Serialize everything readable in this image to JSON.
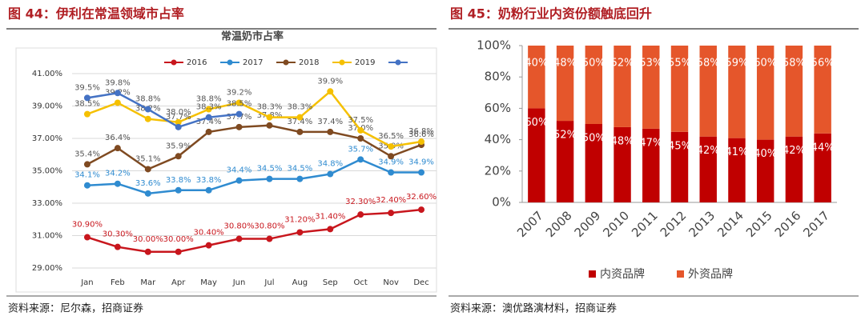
{
  "charts": [
    {
      "heading": "图 44：伊利在常温领域市占率",
      "source": "资料来源：尼尔森，招商证券",
      "chart_data": {
        "type": "line",
        "title": "常温奶市占率",
        "categories": [
          "Jan",
          "Feb",
          "Mar",
          "Apr",
          "May",
          "Jun",
          "Jul",
          "Aug",
          "Sep",
          "Oct",
          "Nov",
          "Dec"
        ],
        "ylim": [
          29,
          41
        ],
        "yticks": [
          {
            "value": 29,
            "label": "29.00%"
          },
          {
            "value": 31,
            "label": "31.00%"
          },
          {
            "value": 33,
            "label": "33.00%"
          },
          {
            "value": 35,
            "label": "35.00%"
          },
          {
            "value": 37,
            "label": "37.00%"
          },
          {
            "value": 39,
            "label": "39.00%"
          },
          {
            "value": 41,
            "label": "41.00%"
          }
        ],
        "grid": true,
        "series": [
          {
            "name": "2016",
            "color": "#c8161d",
            "values": [
              30.9,
              30.3,
              30.0,
              30.0,
              30.4,
              30.8,
              30.8,
              31.2,
              31.4,
              32.3,
              32.4,
              32.6
            ],
            "value_labels": [
              "30.90%",
              "30.30%",
              "30.00%",
              "30.00%",
              "30.40%",
              "30.80%",
              "30.80%",
              "31.20%",
              "31.40%",
              "32.30%",
              "32.40%",
              "32.60%"
            ]
          },
          {
            "name": "2017",
            "color": "#2f8bd0",
            "values": [
              34.1,
              34.2,
              33.6,
              33.8,
              33.8,
              34.4,
              34.5,
              34.5,
              34.8,
              35.7,
              34.9,
              34.9
            ],
            "value_labels": [
              "34.1%",
              "34.2%",
              "33.6%",
              "33.8%",
              "33.8%",
              "34.4%",
              "34.5%",
              "34.5%",
              "34.8%",
              "35.7%",
              "34.9%",
              "34.9%"
            ]
          },
          {
            "name": "2018",
            "color": "#7f4a21",
            "values": [
              35.4,
              36.4,
              35.1,
              35.9,
              37.4,
              37.7,
              37.8,
              37.4,
              37.4,
              37.0,
              35.9,
              36.6
            ],
            "value_labels": [
              "35.4%",
              "36.4%",
              "35.1%",
              "35.9%",
              "37.4%",
              "37.7%",
              "37.8%",
              "37.4%",
              "37.4%",
              "37.0%",
              "35.9%",
              "36.6%"
            ]
          },
          {
            "name": "2019",
            "color": "#f5c000",
            "values": [
              38.5,
              39.2,
              38.2,
              38.0,
              38.8,
              39.2,
              38.3,
              38.3,
              39.9,
              37.5,
              36.5,
              36.8
            ],
            "value_labels": [
              "38.5%",
              "39.2%",
              "38.2%",
              "38.0%",
              "38.8%",
              "39.2%",
              "38.3%",
              "38.3%",
              "39.9%",
              "37.5%",
              "36.5%",
              "36.8%"
            ]
          },
          {
            "name": null,
            "color": "#4472c4",
            "values": [
              39.5,
              39.8,
              38.8,
              37.7,
              38.3,
              38.5,
              null,
              null,
              null,
              null,
              null,
              null
            ],
            "value_labels": [
              "39.5%",
              "39.8%",
              "38.8%",
              "37.7%",
              "38.3%",
              "38.5%",
              null,
              null,
              null,
              null,
              null,
              null
            ]
          }
        ]
      }
    },
    {
      "heading": "图 45：奶粉行业内资份额触底回升",
      "source": "资料来源：澳优路演材料，招商证券",
      "chart_data": {
        "type": "stacked_bar",
        "categories": [
          "2007",
          "2008",
          "2009",
          "2010",
          "2011",
          "2012",
          "2013",
          "2014",
          "2015",
          "2016",
          "2017"
        ],
        "ylim": [
          0,
          100
        ],
        "yticks": [
          {
            "value": 0,
            "label": "0%"
          },
          {
            "value": 20,
            "label": "20%"
          },
          {
            "value": 40,
            "label": "40%"
          },
          {
            "value": 60,
            "label": "60%"
          },
          {
            "value": 80,
            "label": "80%"
          },
          {
            "value": 100,
            "label": "100%"
          }
        ],
        "series": [
          {
            "name": "内资品牌",
            "color": "#c00000",
            "values": [
              60,
              52,
              50,
              48,
              47,
              45,
              42,
              41,
              40,
              42,
              44
            ],
            "value_labels": [
              "60%",
              "52%",
              "50%",
              "48%",
              "47%",
              "45%",
              "42%",
              "41%",
              "40%",
              "42%",
              "44%"
            ]
          },
          {
            "name": "外资品牌",
            "color": "#e5562b",
            "values": [
              40,
              48,
              50,
              52,
              53,
              55,
              58,
              59,
              60,
              58,
              56
            ],
            "value_labels": [
              "40%",
              "48%",
              "50%",
              "52%",
              "53%",
              "55%",
              "58%",
              "59%",
              "60%",
              "58%",
              "56%"
            ]
          }
        ]
      }
    }
  ]
}
